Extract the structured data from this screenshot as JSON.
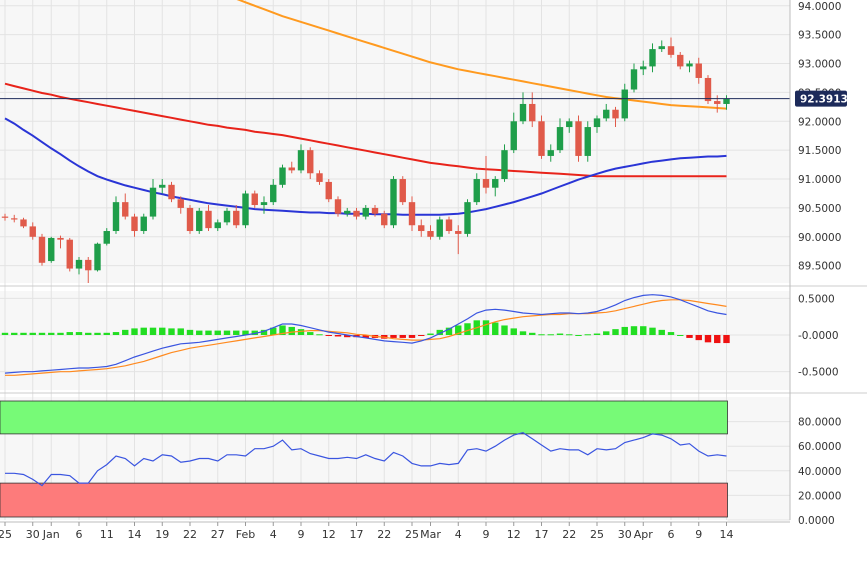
{
  "chart_data": {
    "type": "candlestick",
    "title": "",
    "last_price": "92.3913",
    "colors": {
      "background": "#f7f7f7",
      "grid": "#e3e3e3",
      "axis_text": "#333333",
      "candle_up": "#1f9e4a",
      "candle_down": "#e05a4a",
      "ma_short": "#2a35d6",
      "ma_mid": "#e8231a",
      "ma_long": "#ff9a1f",
      "price_line": "#1c2a5a",
      "price_label_bg": "#1c2a5a",
      "macd_line": "#3a55e0",
      "macd_signal": "#ff8a1f",
      "hist_pos": "#22dd22",
      "hist_neg": "#ee1111",
      "rsi_line": "#3a55e0",
      "rsi_overbought_fill": "#77fa77",
      "rsi_oversold_fill": "#fd7b7b"
    },
    "x_labels": [
      {
        "label": "25",
        "i": 0
      },
      {
        "label": "30",
        "i": 3
      },
      {
        "label": "Jan",
        "i": 5
      },
      {
        "label": "6",
        "i": 8
      },
      {
        "label": "11",
        "i": 11
      },
      {
        "label": "14",
        "i": 14
      },
      {
        "label": "19",
        "i": 17
      },
      {
        "label": "22",
        "i": 20
      },
      {
        "label": "27",
        "i": 23
      },
      {
        "label": "Feb",
        "i": 26
      },
      {
        "label": "4",
        "i": 29
      },
      {
        "label": "9",
        "i": 32
      },
      {
        "label": "12",
        "i": 35
      },
      {
        "label": "17",
        "i": 38
      },
      {
        "label": "22",
        "i": 41
      },
      {
        "label": "25",
        "i": 44
      },
      {
        "label": "Mar",
        "i": 46
      },
      {
        "label": "4",
        "i": 49
      },
      {
        "label": "9",
        "i": 52
      },
      {
        "label": "12",
        "i": 55
      },
      {
        "label": "17",
        "i": 58
      },
      {
        "label": "22",
        "i": 61
      },
      {
        "label": "25",
        "i": 64
      },
      {
        "label": "30",
        "i": 67
      },
      {
        "label": "Apr",
        "i": 69
      },
      {
        "label": "6",
        "i": 72
      },
      {
        "label": "9",
        "i": 75
      },
      {
        "label": "14",
        "i": 78
      }
    ],
    "price_panel": {
      "y_ticks": [
        "89.5000",
        "90.0000",
        "90.5000",
        "91.0000",
        "91.5000",
        "92.0000",
        "92.5000",
        "93.0000",
        "93.5000",
        "94.0000"
      ],
      "ylim": [
        89.2,
        94.1
      ],
      "candles": [
        [
          90.35,
          90.4,
          90.28,
          90.33
        ],
        [
          90.32,
          90.38,
          90.25,
          90.3
        ],
        [
          90.3,
          90.33,
          90.15,
          90.18
        ],
        [
          90.18,
          90.25,
          89.95,
          90.0
        ],
        [
          90.0,
          90.05,
          89.5,
          89.55
        ],
        [
          89.58,
          90.0,
          89.55,
          89.98
        ],
        [
          89.98,
          90.02,
          89.8,
          89.95
        ],
        [
          89.95,
          89.98,
          89.4,
          89.45
        ],
        [
          89.45,
          89.65,
          89.35,
          89.6
        ],
        [
          89.6,
          89.65,
          89.2,
          89.42
        ],
        [
          89.42,
          89.9,
          89.4,
          89.88
        ],
        [
          89.88,
          90.15,
          89.85,
          90.1
        ],
        [
          90.1,
          90.7,
          90.05,
          90.6
        ],
        [
          90.6,
          90.75,
          90.3,
          90.35
        ],
        [
          90.35,
          90.4,
          90.0,
          90.1
        ],
        [
          90.1,
          90.4,
          90.05,
          90.35
        ],
        [
          90.35,
          91.0,
          90.3,
          90.85
        ],
        [
          90.85,
          91.0,
          90.75,
          90.9
        ],
        [
          90.9,
          90.95,
          90.6,
          90.65
        ],
        [
          90.65,
          90.7,
          90.4,
          90.5
        ],
        [
          90.5,
          90.55,
          90.05,
          90.1
        ],
        [
          90.1,
          90.5,
          90.05,
          90.45
        ],
        [
          90.45,
          90.55,
          90.1,
          90.15
        ],
        [
          90.15,
          90.3,
          90.1,
          90.25
        ],
        [
          90.25,
          90.5,
          90.2,
          90.45
        ],
        [
          90.45,
          90.55,
          90.15,
          90.2
        ],
        [
          90.2,
          90.8,
          90.15,
          90.75
        ],
        [
          90.75,
          90.8,
          90.5,
          90.55
        ],
        [
          90.55,
          90.7,
          90.4,
          90.6
        ],
        [
          90.6,
          91.0,
          90.55,
          90.9
        ],
        [
          90.9,
          91.25,
          90.85,
          91.2
        ],
        [
          91.2,
          91.3,
          91.1,
          91.15
        ],
        [
          91.15,
          91.6,
          91.1,
          91.5
        ],
        [
          91.5,
          91.55,
          91.0,
          91.1
        ],
        [
          91.1,
          91.15,
          90.9,
          90.95
        ],
        [
          90.95,
          91.0,
          90.6,
          90.65
        ],
        [
          90.65,
          90.7,
          90.35,
          90.4
        ],
        [
          90.4,
          90.5,
          90.35,
          90.45
        ],
        [
          90.45,
          90.5,
          90.3,
          90.35
        ],
        [
          90.35,
          90.55,
          90.3,
          90.5
        ],
        [
          90.5,
          90.55,
          90.35,
          90.4
        ],
        [
          90.4,
          90.45,
          90.15,
          90.2
        ],
        [
          90.2,
          91.05,
          90.15,
          91.0
        ],
        [
          91.0,
          91.05,
          90.55,
          90.6
        ],
        [
          90.6,
          90.7,
          90.1,
          90.2
        ],
        [
          90.2,
          90.3,
          90.0,
          90.1
        ],
        [
          90.1,
          90.2,
          89.95,
          90.0
        ],
        [
          90.0,
          90.35,
          89.95,
          90.3
        ],
        [
          90.3,
          90.35,
          90.05,
          90.1
        ],
        [
          90.1,
          90.2,
          89.7,
          90.05
        ],
        [
          90.05,
          90.65,
          90.0,
          90.6
        ],
        [
          90.6,
          91.1,
          90.55,
          91.0
        ],
        [
          91.0,
          91.4,
          90.75,
          90.85
        ],
        [
          90.85,
          91.05,
          90.7,
          91.0
        ],
        [
          91.0,
          91.6,
          90.95,
          91.5
        ],
        [
          91.5,
          92.15,
          91.45,
          92.0
        ],
        [
          92.0,
          92.5,
          91.95,
          92.3
        ],
        [
          92.3,
          92.5,
          91.9,
          92.0
        ],
        [
          92.0,
          92.1,
          91.35,
          91.4
        ],
        [
          91.4,
          91.6,
          91.3,
          91.5
        ],
        [
          91.5,
          92.05,
          91.45,
          91.9
        ],
        [
          91.9,
          92.05,
          91.8,
          92.0
        ],
        [
          92.0,
          92.1,
          91.3,
          91.4
        ],
        [
          91.4,
          92.0,
          91.3,
          91.9
        ],
        [
          91.9,
          92.1,
          91.8,
          92.05
        ],
        [
          92.05,
          92.3,
          92.0,
          92.2
        ],
        [
          92.2,
          92.25,
          91.9,
          92.05
        ],
        [
          92.05,
          92.65,
          92.0,
          92.55
        ],
        [
          92.55,
          93.0,
          92.5,
          92.9
        ],
        [
          92.9,
          93.05,
          92.8,
          92.95
        ],
        [
          92.95,
          93.35,
          92.85,
          93.25
        ],
        [
          93.25,
          93.4,
          93.2,
          93.3
        ],
        [
          93.3,
          93.45,
          93.1,
          93.15
        ],
        [
          93.15,
          93.2,
          92.9,
          92.95
        ],
        [
          92.95,
          93.05,
          92.85,
          93.0
        ],
        [
          93.0,
          93.1,
          92.65,
          92.75
        ],
        [
          92.75,
          92.8,
          92.3,
          92.35
        ],
        [
          92.35,
          92.45,
          92.15,
          92.3
        ],
        [
          92.3,
          92.45,
          92.2,
          92.39
        ]
      ],
      "ma_short": [
        92.05,
        91.96,
        91.85,
        91.75,
        91.64,
        91.53,
        91.43,
        91.32,
        91.22,
        91.13,
        91.05,
        90.99,
        90.94,
        90.89,
        90.85,
        90.81,
        90.77,
        90.74,
        90.7,
        90.67,
        90.64,
        90.61,
        90.58,
        90.56,
        90.54,
        90.52,
        90.5,
        90.48,
        90.47,
        90.46,
        90.45,
        90.44,
        90.43,
        90.42,
        90.42,
        90.41,
        90.41,
        90.4,
        90.4,
        90.4,
        90.39,
        90.39,
        90.39,
        90.38,
        90.38,
        90.38,
        90.38,
        90.38,
        90.39,
        90.4,
        90.42,
        90.45,
        90.48,
        90.52,
        90.56,
        90.6,
        90.65,
        90.7,
        90.75,
        90.81,
        90.87,
        90.93,
        90.99,
        91.04,
        91.09,
        91.14,
        91.18,
        91.21,
        91.24,
        91.27,
        91.3,
        91.32,
        91.34,
        91.36,
        91.37,
        91.38,
        91.39,
        91.39,
        91.4
      ],
      "ma_mid": [
        92.65,
        92.61,
        92.57,
        92.53,
        92.49,
        92.46,
        92.42,
        92.39,
        92.36,
        92.33,
        92.3,
        92.27,
        92.24,
        92.21,
        92.18,
        92.15,
        92.12,
        92.09,
        92.06,
        92.03,
        92.0,
        91.97,
        91.94,
        91.92,
        91.89,
        91.87,
        91.85,
        91.82,
        91.8,
        91.78,
        91.76,
        91.73,
        91.7,
        91.67,
        91.64,
        91.61,
        91.58,
        91.55,
        91.52,
        91.49,
        91.46,
        91.43,
        91.4,
        91.37,
        91.34,
        91.31,
        91.28,
        91.26,
        91.24,
        91.22,
        91.2,
        91.18,
        91.17,
        91.16,
        91.15,
        91.14,
        91.13,
        91.12,
        91.11,
        91.1,
        91.09,
        91.08,
        91.07,
        91.06,
        91.05,
        91.05,
        91.05,
        91.05,
        91.05,
        91.05,
        91.05,
        91.05,
        91.05,
        91.05,
        91.05,
        91.05,
        91.05,
        91.05,
        91.05
      ],
      "ma_long": [
        null,
        null,
        null,
        null,
        null,
        null,
        null,
        null,
        null,
        null,
        null,
        null,
        null,
        null,
        null,
        null,
        null,
        null,
        null,
        null,
        null,
        null,
        null,
        null,
        null,
        94.12,
        94.06,
        94.0,
        93.94,
        93.88,
        93.82,
        93.77,
        93.72,
        93.67,
        93.62,
        93.57,
        93.52,
        93.47,
        93.42,
        93.37,
        93.32,
        93.27,
        93.22,
        93.17,
        93.12,
        93.07,
        93.02,
        92.98,
        92.94,
        92.9,
        92.87,
        92.84,
        92.81,
        92.78,
        92.75,
        92.72,
        92.69,
        92.66,
        92.63,
        92.6,
        92.57,
        92.54,
        92.51,
        92.48,
        92.45,
        92.42,
        92.4,
        92.38,
        92.36,
        92.34,
        92.32,
        92.3,
        92.28,
        92.27,
        92.26,
        92.25,
        92.24,
        92.23,
        92.22
      ]
    },
    "macd_panel": {
      "y_ticks": [
        "-0.5000",
        "-0.0000",
        "0.5000"
      ],
      "ylim": [
        -0.75,
        0.6
      ],
      "macd": [
        -0.52,
        -0.51,
        -0.5,
        -0.5,
        -0.49,
        -0.48,
        -0.47,
        -0.46,
        -0.45,
        -0.45,
        -0.44,
        -0.43,
        -0.4,
        -0.35,
        -0.3,
        -0.26,
        -0.22,
        -0.18,
        -0.15,
        -0.12,
        -0.11,
        -0.1,
        -0.08,
        -0.06,
        -0.04,
        -0.02,
        0.0,
        0.02,
        0.05,
        0.1,
        0.15,
        0.15,
        0.13,
        0.1,
        0.07,
        0.04,
        0.02,
        0.0,
        -0.02,
        -0.04,
        -0.06,
        -0.08,
        -0.09,
        -0.1,
        -0.11,
        -0.08,
        -0.04,
        0.02,
        0.08,
        0.15,
        0.22,
        0.3,
        0.34,
        0.35,
        0.34,
        0.32,
        0.3,
        0.29,
        0.28,
        0.29,
        0.3,
        0.3,
        0.29,
        0.3,
        0.32,
        0.36,
        0.41,
        0.47,
        0.51,
        0.54,
        0.55,
        0.54,
        0.52,
        0.48,
        0.43,
        0.38,
        0.33,
        0.3,
        0.28
      ],
      "signal": [
        -0.55,
        -0.55,
        -0.54,
        -0.53,
        -0.52,
        -0.51,
        -0.5,
        -0.5,
        -0.49,
        -0.48,
        -0.47,
        -0.46,
        -0.44,
        -0.42,
        -0.39,
        -0.36,
        -0.32,
        -0.28,
        -0.24,
        -0.21,
        -0.18,
        -0.16,
        -0.14,
        -0.12,
        -0.1,
        -0.08,
        -0.06,
        -0.04,
        -0.02,
        0.0,
        0.02,
        0.04,
        0.05,
        0.06,
        0.06,
        0.05,
        0.04,
        0.03,
        0.01,
        0.0,
        -0.02,
        -0.03,
        -0.05,
        -0.06,
        -0.07,
        -0.07,
        -0.06,
        -0.05,
        -0.02,
        0.02,
        0.06,
        0.1,
        0.14,
        0.18,
        0.21,
        0.23,
        0.25,
        0.26,
        0.27,
        0.28,
        0.28,
        0.29,
        0.29,
        0.29,
        0.3,
        0.31,
        0.33,
        0.36,
        0.39,
        0.42,
        0.45,
        0.47,
        0.48,
        0.48,
        0.47,
        0.45,
        0.43,
        0.41,
        0.39
      ],
      "histogram": [
        0.03,
        0.03,
        0.03,
        0.03,
        0.03,
        0.03,
        0.03,
        0.04,
        0.04,
        0.03,
        0.03,
        0.03,
        0.04,
        0.07,
        0.09,
        0.1,
        0.1,
        0.1,
        0.09,
        0.09,
        0.07,
        0.06,
        0.06,
        0.06,
        0.06,
        0.06,
        0.06,
        0.06,
        0.07,
        0.1,
        0.13,
        0.11,
        0.08,
        0.04,
        0.01,
        -0.01,
        -0.02,
        -0.03,
        -0.03,
        -0.04,
        -0.04,
        -0.05,
        -0.04,
        -0.04,
        -0.04,
        -0.01,
        0.02,
        0.07,
        0.1,
        0.13,
        0.16,
        0.2,
        0.2,
        0.17,
        0.13,
        0.09,
        0.05,
        0.03,
        0.01,
        0.01,
        0.02,
        0.01,
        0.0,
        0.01,
        0.02,
        0.05,
        0.08,
        0.11,
        0.12,
        0.12,
        0.1,
        0.07,
        0.04,
        0.0,
        -0.04,
        -0.07,
        -0.1,
        -0.11,
        -0.11
      ]
    },
    "rsi_panel": {
      "y_ticks": [
        "0.0000",
        "20.0000",
        "40.0000",
        "60.0000",
        "80.0000"
      ],
      "ylim": [
        0,
        100
      ],
      "overbought": 70,
      "oversold": 30,
      "rsi": [
        38,
        38,
        37,
        33,
        28,
        37,
        37,
        36,
        30,
        30,
        40,
        45,
        52,
        50,
        44,
        50,
        48,
        53,
        52,
        47,
        48,
        50,
        50,
        48,
        53,
        53,
        52,
        58,
        58,
        60,
        65,
        57,
        58,
        54,
        52,
        50,
        50,
        51,
        50,
        53,
        50,
        48,
        55,
        52,
        46,
        44,
        44,
        46,
        45,
        46,
        57,
        58,
        56,
        60,
        65,
        69,
        71,
        66,
        61,
        56,
        58,
        57,
        57,
        53,
        58,
        57,
        58,
        63,
        65,
        67,
        70,
        69,
        66,
        61,
        62,
        56,
        52,
        53,
        52
      ]
    }
  }
}
